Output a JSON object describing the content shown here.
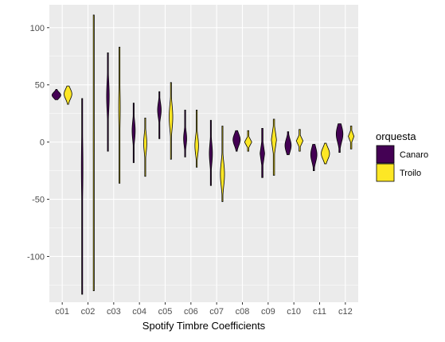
{
  "chart_data": {
    "type": "violin",
    "xlabel": "Spotify Timbre Coefficients",
    "ylabel": "",
    "categories": [
      "c01",
      "c02",
      "c03",
      "c04",
      "c05",
      "c06",
      "c07",
      "c08",
      "c09",
      "c10",
      "c11",
      "c12"
    ],
    "ylim": [
      -140,
      120
    ],
    "yticks": [
      -100,
      -50,
      0,
      50,
      100
    ],
    "grid": true,
    "legend": {
      "title": "orquesta",
      "placement": "right",
      "entries": [
        {
          "name": "Canaro",
          "color": "#440154"
        },
        {
          "name": "Troilo",
          "color": "#FDE725"
        }
      ]
    },
    "series": [
      {
        "name": "Canaro",
        "color": "#440154",
        "violins": [
          {
            "min": 37,
            "max": 46,
            "halfwidth": 0.17,
            "peak": 41,
            "shape": "blob"
          },
          {
            "min": -133,
            "max": 38,
            "halfwidth": 0.03,
            "peak": -22,
            "shape": "thin"
          },
          {
            "min": -8,
            "max": 78,
            "halfwidth": 0.05,
            "peak": 40,
            "shape": "thin"
          },
          {
            "min": -18,
            "max": 34,
            "halfwidth": 0.06,
            "peak": 10,
            "shape": "thin"
          },
          {
            "min": 3,
            "max": 44,
            "halfwidth": 0.07,
            "peak": 28,
            "shape": "thin"
          },
          {
            "min": -13,
            "max": 28,
            "halfwidth": 0.06,
            "peak": 3,
            "shape": "thin"
          },
          {
            "min": -38,
            "max": 19,
            "halfwidth": 0.06,
            "peak": -10,
            "shape": "thin"
          },
          {
            "min": -8,
            "max": 10,
            "halfwidth": 0.14,
            "peak": 2,
            "shape": "blob"
          },
          {
            "min": -31,
            "max": 12,
            "halfwidth": 0.09,
            "peak": -10,
            "shape": "diamond"
          },
          {
            "min": -11,
            "max": 9,
            "halfwidth": 0.12,
            "peak": -3,
            "shape": "blob"
          },
          {
            "min": -25,
            "max": -2,
            "halfwidth": 0.12,
            "peak": -11,
            "shape": "blob"
          },
          {
            "min": -9,
            "max": 16,
            "halfwidth": 0.13,
            "peak": 7,
            "shape": "blob"
          }
        ]
      },
      {
        "name": "Troilo",
        "color": "#FDE725",
        "violins": [
          {
            "min": 33,
            "max": 49,
            "halfwidth": 0.15,
            "peak": 42,
            "shape": "blob"
          },
          {
            "min": -130,
            "max": 111,
            "halfwidth": 0.02,
            "peak": 0,
            "shape": "thin"
          },
          {
            "min": -36,
            "max": 83,
            "halfwidth": 0.03,
            "peak": 30,
            "shape": "thin"
          },
          {
            "min": -30,
            "max": 21,
            "halfwidth": 0.06,
            "peak": -1,
            "shape": "thin"
          },
          {
            "min": -15,
            "max": 52,
            "halfwidth": 0.07,
            "peak": 22,
            "shape": "thin"
          },
          {
            "min": -22,
            "max": 28,
            "halfwidth": 0.07,
            "peak": -3,
            "shape": "thin"
          },
          {
            "min": -52,
            "max": 14,
            "halfwidth": 0.08,
            "peak": -28,
            "shape": "thin"
          },
          {
            "min": -8,
            "max": 10,
            "halfwidth": 0.14,
            "peak": 0,
            "shape": "diamond"
          },
          {
            "min": -29,
            "max": 20,
            "halfwidth": 0.1,
            "peak": 2,
            "shape": "diamond"
          },
          {
            "min": -8,
            "max": 11,
            "halfwidth": 0.13,
            "peak": 1,
            "shape": "diamond"
          },
          {
            "min": -19,
            "max": -1,
            "halfwidth": 0.16,
            "peak": -10,
            "shape": "blob"
          },
          {
            "min": -6,
            "max": 14,
            "halfwidth": 0.11,
            "peak": 5,
            "shape": "diamond"
          }
        ]
      }
    ]
  }
}
